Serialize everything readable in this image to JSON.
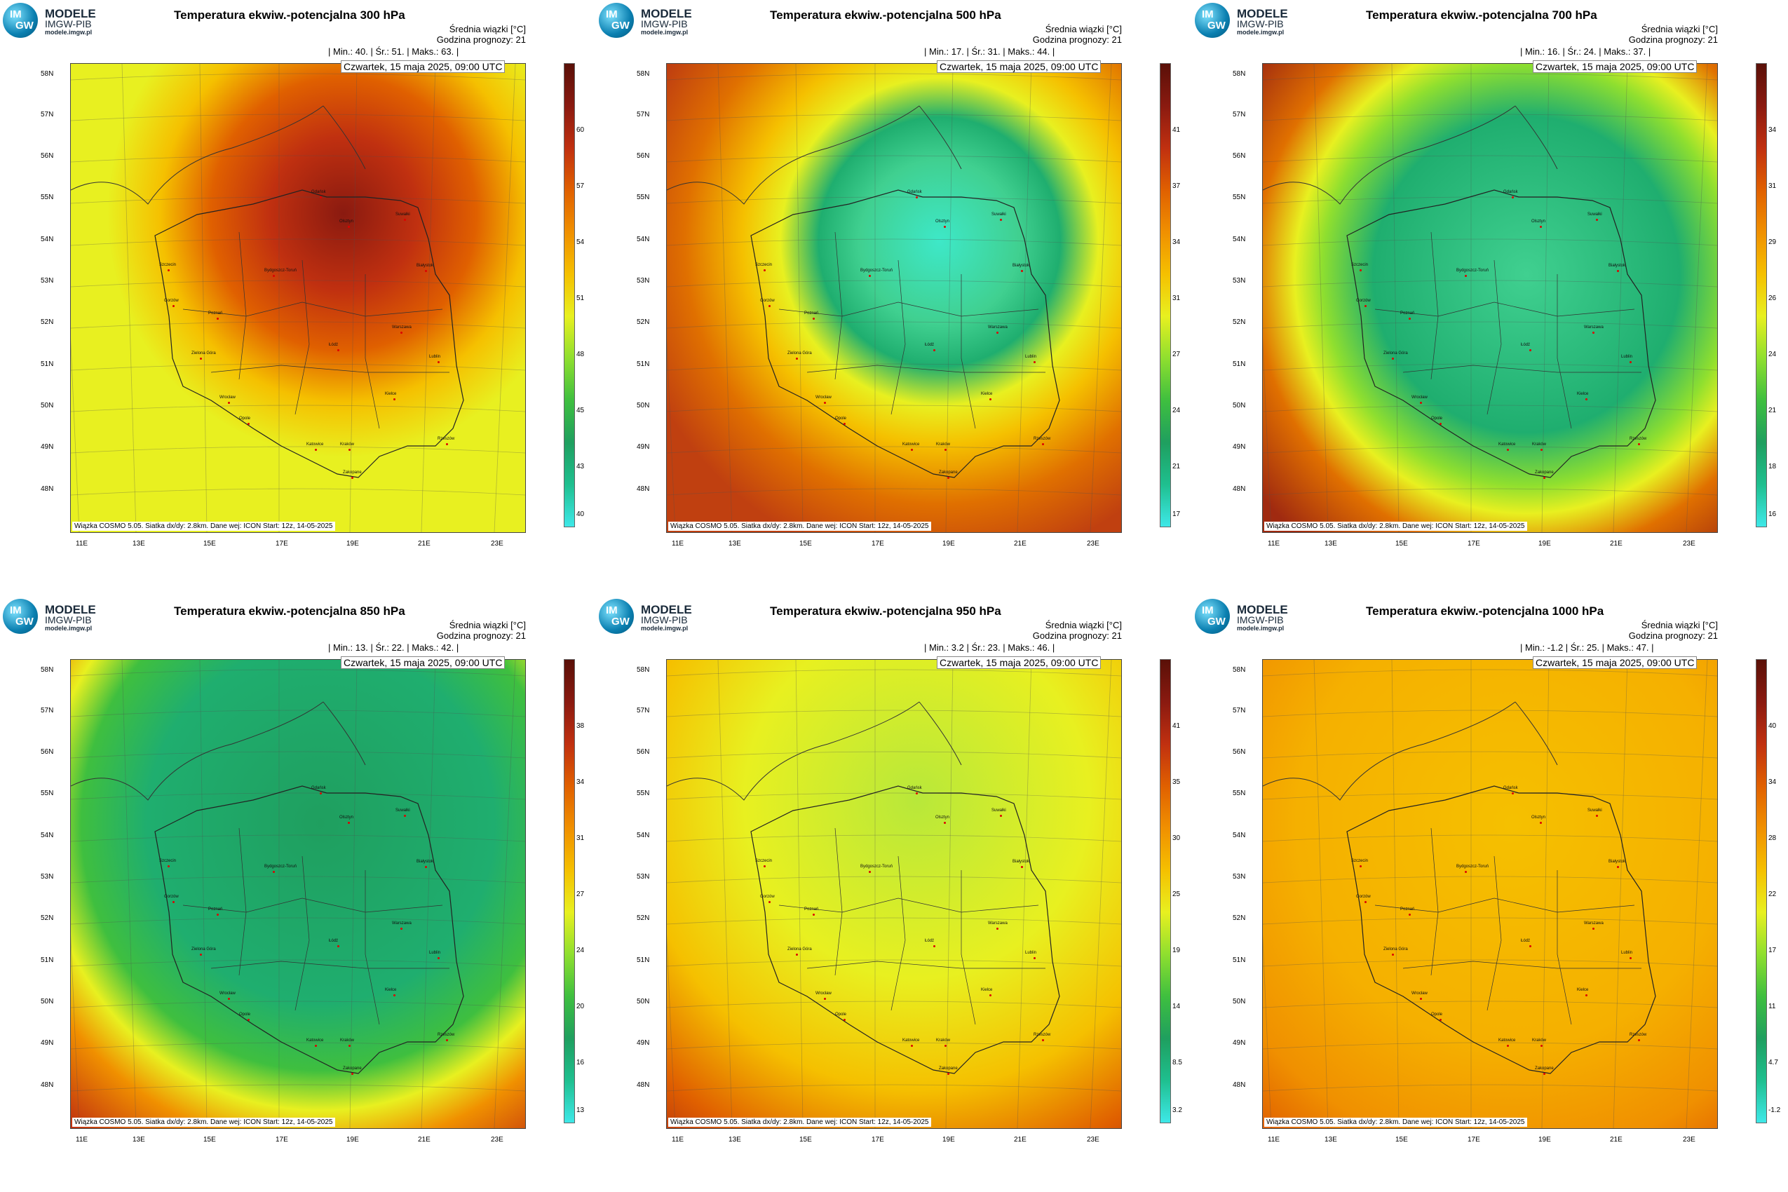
{
  "logo": {
    "line1": "MODELE",
    "line2": "IMGW-PIB",
    "line3": "modele.imgw.pl",
    "disc_top": "IM",
    "disc_bottom": "GW"
  },
  "common": {
    "info_line1": "Średnia wiązki [°C]",
    "info_line2": "Godzina prognozy: 21",
    "date": "Czwartek, 15 maja 2025, 09:00 UTC",
    "credit": "Wiązka COSMO 5.05. Siatka dx/dy: 2.8km. Dane wej: ICON Start: 12z, 14-05-2025",
    "lat_labels": [
      "58N",
      "57N",
      "56N",
      "55N",
      "54N",
      "53N",
      "52N",
      "51N",
      "50N",
      "49N",
      "48N"
    ],
    "lon_labels": [
      "11E",
      "13E",
      "15E",
      "17E",
      "19E",
      "21E",
      "23E"
    ],
    "cities": [
      "Gdańsk",
      "Olsztyn",
      "Suwałki",
      "Szczecin",
      "Bydgoszcz-Toruń",
      "Białystok",
      "Gorzów",
      "Poznań",
      "Warszawa",
      "Zielona Góra",
      "Łódź",
      "Lublin",
      "Wrocław",
      "Kielce",
      "Opole",
      "Katowice",
      "Kraków",
      "Rzeszów",
      "Zakopane"
    ]
  },
  "panels": [
    {
      "title": "Temperatura ekwiw.-potencjalna 300 hPa",
      "stats": "| Min.:   40. | Śr.:   51. | Maks.:   63. |",
      "colorbar": [
        "60",
        "57",
        "54",
        "51",
        "48",
        "45",
        "43",
        "40"
      ],
      "palette": "hot-center"
    },
    {
      "title": "Temperatura ekwiw.-potencjalna 500 hPa",
      "stats": "| Min.:   17. | Śr.:   31. | Maks.:   44. |",
      "colorbar": [
        "41",
        "37",
        "34",
        "31",
        "27",
        "24",
        "21",
        "17"
      ],
      "palette": "cold-center"
    },
    {
      "title": "Temperatura ekwiw.-potencjalna 700 hPa",
      "stats": "| Min.:   16. | Śr.:   24. | Maks.:   37. |",
      "colorbar": [
        "34",
        "31",
        "29",
        "26",
        "24",
        "21",
        "18",
        "16"
      ],
      "palette": "cold-center-wide"
    },
    {
      "title": "Temperatura ekwiw.-potencjalna 850 hPa",
      "stats": "| Min.:   13. | Śr.:   22. | Maks.:   42. |",
      "colorbar": [
        "38",
        "34",
        "31",
        "27",
        "24",
        "20",
        "16",
        "13"
      ],
      "palette": "green-north"
    },
    {
      "title": "Temperatura ekwiw.-potencjalna 950 hPa",
      "stats": "| Min.:   3.2 | Śr.:   23. | Maks.:   46. |",
      "colorbar": [
        "41",
        "35",
        "30",
        "25",
        "19",
        "14",
        "8.5",
        "3.2"
      ],
      "palette": "yellow-south-red"
    },
    {
      "title": "Temperatura ekwiw.-potencjalna 1000 hPa",
      "stats": "| Min.:   -1.2 | Śr.:   25. | Maks.:   47. |",
      "colorbar": [
        "40",
        "34",
        "28",
        "22",
        "17",
        "11",
        "4.7",
        "-1.2"
      ],
      "palette": "orange-south-red"
    }
  ],
  "colors": {
    "ramp": [
      "#3ee8e8",
      "#1fbf8f",
      "#1f9f5f",
      "#3fbf3f",
      "#8fdf2f",
      "#e8f020",
      "#f5c000",
      "#f09000",
      "#e06000",
      "#c03010",
      "#8a1a10",
      "#5a1008"
    ]
  }
}
